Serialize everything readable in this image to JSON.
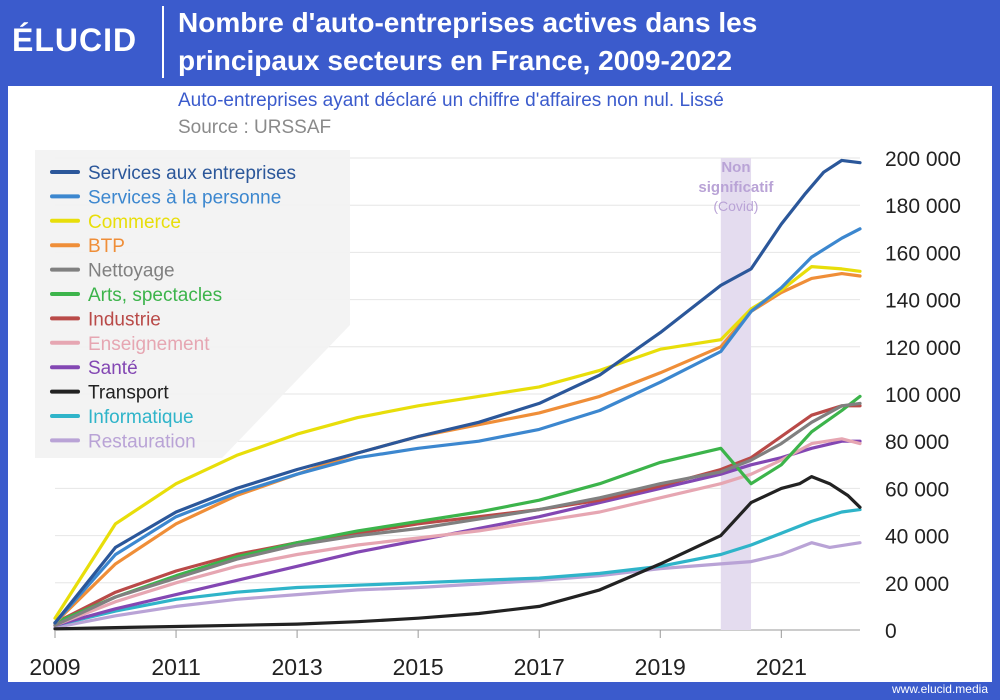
{
  "header": {
    "logo": "ÉLUCID",
    "title_line1": "Nombre d'auto-entreprises actives dans les",
    "title_line2": "principaux secteurs en France, 2009-2022",
    "subtitle": "Auto-entreprises ayant déclaré un chiffre d'affaires non nul. Lissé",
    "source": "Source : URSSAF"
  },
  "footer": {
    "url": "www.elucid.media"
  },
  "colors": {
    "brand": "#3b5bcc",
    "covid_band": "#e4dcef",
    "covid_text": "#b9a3d6"
  },
  "chart_data": {
    "type": "line",
    "title": "Nombre d'auto-entreprises actives dans les principaux secteurs en France, 2009-2022",
    "xlim": [
      2009,
      2022.3
    ],
    "ylim": [
      0,
      200000
    ],
    "x_ticks": [
      "2009",
      "2011",
      "2013",
      "2015",
      "2017",
      "2019",
      "2021"
    ],
    "y_ticks": [
      "0",
      "20 000",
      "40 000",
      "60 000",
      "80 000",
      "100 000",
      "120 000",
      "140 000",
      "160 000",
      "180 000",
      "200 000"
    ],
    "y_axis_side": "right",
    "grid": "horizontal",
    "legend_position": "top-left",
    "annotation": {
      "line1": "Non",
      "line2": "significatif",
      "line3": "(Covid)",
      "x_range": [
        2020.0,
        2020.5
      ]
    },
    "series": [
      {
        "name": "Services aux entreprises",
        "color": "#2b579a",
        "points": [
          [
            2009,
            3000
          ],
          [
            2010,
            35000
          ],
          [
            2011,
            50000
          ],
          [
            2012,
            60000
          ],
          [
            2013,
            68000
          ],
          [
            2014,
            75000
          ],
          [
            2015,
            82000
          ],
          [
            2016,
            88000
          ],
          [
            2017,
            96000
          ],
          [
            2018,
            108000
          ],
          [
            2019,
            126000
          ],
          [
            2020,
            146000
          ],
          [
            2020.5,
            153000
          ],
          [
            2021,
            172000
          ],
          [
            2021.4,
            185000
          ],
          [
            2021.7,
            194000
          ],
          [
            2022,
            199000
          ],
          [
            2022.3,
            198000
          ]
        ]
      },
      {
        "name": "Services à la personne",
        "color": "#3c87cf",
        "points": [
          [
            2009,
            3000
          ],
          [
            2010,
            32000
          ],
          [
            2011,
            48000
          ],
          [
            2012,
            58000
          ],
          [
            2013,
            66000
          ],
          [
            2014,
            73000
          ],
          [
            2015,
            77000
          ],
          [
            2016,
            80000
          ],
          [
            2017,
            85000
          ],
          [
            2018,
            93000
          ],
          [
            2019,
            105000
          ],
          [
            2020,
            118000
          ],
          [
            2020.5,
            135000
          ],
          [
            2021,
            145000
          ],
          [
            2021.5,
            158000
          ],
          [
            2022,
            166000
          ],
          [
            2022.3,
            170000
          ]
        ]
      },
      {
        "name": "Commerce",
        "color": "#e8de0a",
        "points": [
          [
            2009,
            5000
          ],
          [
            2010,
            45000
          ],
          [
            2011,
            62000
          ],
          [
            2012,
            74000
          ],
          [
            2013,
            83000
          ],
          [
            2014,
            90000
          ],
          [
            2015,
            95000
          ],
          [
            2016,
            99000
          ],
          [
            2017,
            103000
          ],
          [
            2018,
            110000
          ],
          [
            2019,
            119000
          ],
          [
            2020,
            123000
          ],
          [
            2020.5,
            136000
          ],
          [
            2021,
            144000
          ],
          [
            2021.5,
            154000
          ],
          [
            2022,
            153000
          ],
          [
            2022.3,
            152000
          ]
        ]
      },
      {
        "name": "BTP",
        "color": "#ef8e38",
        "points": [
          [
            2009,
            3000
          ],
          [
            2010,
            28000
          ],
          [
            2011,
            45000
          ],
          [
            2012,
            57000
          ],
          [
            2013,
            66000
          ],
          [
            2014,
            75000
          ],
          [
            2015,
            82000
          ],
          [
            2016,
            87000
          ],
          [
            2017,
            92000
          ],
          [
            2018,
            99000
          ],
          [
            2019,
            109000
          ],
          [
            2020,
            120000
          ],
          [
            2020.5,
            135000
          ],
          [
            2021,
            143000
          ],
          [
            2021.5,
            149000
          ],
          [
            2022,
            151000
          ],
          [
            2022.3,
            150000
          ]
        ]
      },
      {
        "name": "Nettoyage",
        "color": "#808080",
        "points": [
          [
            2009,
            2000
          ],
          [
            2010,
            14000
          ],
          [
            2011,
            22000
          ],
          [
            2012,
            30000
          ],
          [
            2013,
            36000
          ],
          [
            2014,
            40000
          ],
          [
            2015,
            43000
          ],
          [
            2016,
            47000
          ],
          [
            2017,
            51000
          ],
          [
            2018,
            56000
          ],
          [
            2019,
            62000
          ],
          [
            2020,
            67000
          ],
          [
            2020.5,
            72000
          ],
          [
            2021,
            79000
          ],
          [
            2021.5,
            88000
          ],
          [
            2022,
            95000
          ],
          [
            2022.3,
            96000
          ]
        ]
      },
      {
        "name": "Arts, spectacles",
        "color": "#3cb44b",
        "points": [
          [
            2009,
            3000
          ],
          [
            2010,
            14000
          ],
          [
            2011,
            23000
          ],
          [
            2012,
            31000
          ],
          [
            2013,
            37000
          ],
          [
            2014,
            42000
          ],
          [
            2015,
            46000
          ],
          [
            2016,
            50000
          ],
          [
            2017,
            55000
          ],
          [
            2018,
            62000
          ],
          [
            2019,
            71000
          ],
          [
            2020,
            77000
          ],
          [
            2020.5,
            62000
          ],
          [
            2021,
            70000
          ],
          [
            2021.5,
            84000
          ],
          [
            2022,
            93000
          ],
          [
            2022.3,
            99000
          ]
        ]
      },
      {
        "name": "Industrie",
        "color": "#b94a48",
        "points": [
          [
            2009,
            3000
          ],
          [
            2010,
            16000
          ],
          [
            2011,
            25000
          ],
          [
            2012,
            32000
          ],
          [
            2013,
            37000
          ],
          [
            2014,
            41000
          ],
          [
            2015,
            45000
          ],
          [
            2016,
            48000
          ],
          [
            2017,
            51000
          ],
          [
            2018,
            55000
          ],
          [
            2019,
            61000
          ],
          [
            2020,
            68000
          ],
          [
            2020.5,
            73000
          ],
          [
            2021,
            82000
          ],
          [
            2021.5,
            91000
          ],
          [
            2022,
            95000
          ],
          [
            2022.3,
            95000
          ]
        ]
      },
      {
        "name": "Enseignement",
        "color": "#e6a6b2",
        "points": [
          [
            2009,
            2000
          ],
          [
            2010,
            12000
          ],
          [
            2011,
            20000
          ],
          [
            2012,
            27000
          ],
          [
            2013,
            32000
          ],
          [
            2014,
            36000
          ],
          [
            2015,
            39000
          ],
          [
            2016,
            42000
          ],
          [
            2017,
            46000
          ],
          [
            2018,
            50000
          ],
          [
            2019,
            56000
          ],
          [
            2020,
            62000
          ],
          [
            2020.5,
            66000
          ],
          [
            2021,
            72000
          ],
          [
            2021.5,
            79000
          ],
          [
            2022,
            81000
          ],
          [
            2022.3,
            79000
          ]
        ]
      },
      {
        "name": "Santé",
        "color": "#8347b3",
        "points": [
          [
            2009,
            2000
          ],
          [
            2010,
            9000
          ],
          [
            2011,
            15000
          ],
          [
            2012,
            21000
          ],
          [
            2013,
            27000
          ],
          [
            2014,
            33000
          ],
          [
            2015,
            38000
          ],
          [
            2016,
            43000
          ],
          [
            2017,
            48000
          ],
          [
            2018,
            54000
          ],
          [
            2019,
            60000
          ],
          [
            2020,
            66000
          ],
          [
            2020.5,
            70000
          ],
          [
            2021,
            73000
          ],
          [
            2021.5,
            77000
          ],
          [
            2022,
            80000
          ],
          [
            2022.3,
            80000
          ]
        ]
      },
      {
        "name": "Transport",
        "color": "#222222",
        "points": [
          [
            2009,
            500
          ],
          [
            2010,
            1000
          ],
          [
            2011,
            1500
          ],
          [
            2012,
            2000
          ],
          [
            2013,
            2500
          ],
          [
            2014,
            3500
          ],
          [
            2015,
            5000
          ],
          [
            2016,
            7000
          ],
          [
            2017,
            10000
          ],
          [
            2018,
            17000
          ],
          [
            2019,
            28000
          ],
          [
            2020,
            40000
          ],
          [
            2020.5,
            54000
          ],
          [
            2021,
            60000
          ],
          [
            2021.3,
            62000
          ],
          [
            2021.5,
            65000
          ],
          [
            2021.8,
            62000
          ],
          [
            2022.1,
            57000
          ],
          [
            2022.3,
            52000
          ]
        ]
      },
      {
        "name": "Informatique",
        "color": "#2fb4c9",
        "points": [
          [
            2009,
            2000
          ],
          [
            2010,
            8000
          ],
          [
            2011,
            13000
          ],
          [
            2012,
            16000
          ],
          [
            2013,
            18000
          ],
          [
            2014,
            19000
          ],
          [
            2015,
            20000
          ],
          [
            2016,
            21000
          ],
          [
            2017,
            22000
          ],
          [
            2018,
            24000
          ],
          [
            2019,
            27000
          ],
          [
            2020,
            32000
          ],
          [
            2020.5,
            36000
          ],
          [
            2021,
            41000
          ],
          [
            2021.5,
            46000
          ],
          [
            2022,
            50000
          ],
          [
            2022.3,
            51000
          ]
        ]
      },
      {
        "name": "Restauration",
        "color": "#b9a3d6",
        "points": [
          [
            2009,
            1000
          ],
          [
            2010,
            6000
          ],
          [
            2011,
            10000
          ],
          [
            2012,
            13000
          ],
          [
            2013,
            15000
          ],
          [
            2014,
            17000
          ],
          [
            2015,
            18000
          ],
          [
            2016,
            19500
          ],
          [
            2017,
            21000
          ],
          [
            2018,
            23000
          ],
          [
            2019,
            26000
          ],
          [
            2020,
            28000
          ],
          [
            2020.5,
            29000
          ],
          [
            2021,
            32000
          ],
          [
            2021.5,
            37000
          ],
          [
            2021.8,
            35000
          ],
          [
            2022.3,
            37000
          ]
        ]
      }
    ]
  }
}
